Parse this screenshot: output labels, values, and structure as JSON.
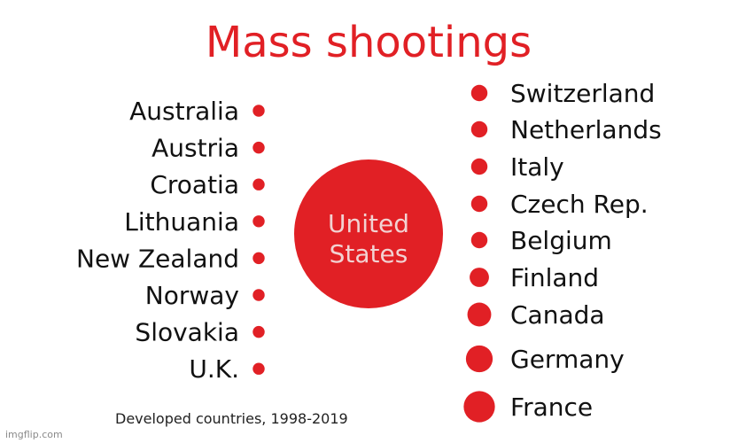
{
  "chart_data": {
    "type": "bubble",
    "title": "Mass shootings",
    "subtitle": "Developed countries, 1998-2019",
    "accent_color": "#e12025",
    "center": {
      "label_line1": "United",
      "label_line2": "States",
      "relative_size": 1.0
    },
    "left_group": [
      {
        "name": "Australia",
        "relative_size": 0.08
      },
      {
        "name": "Austria",
        "relative_size": 0.08
      },
      {
        "name": "Croatia",
        "relative_size": 0.08
      },
      {
        "name": "Lithuania",
        "relative_size": 0.08
      },
      {
        "name": "New Zealand",
        "relative_size": 0.08
      },
      {
        "name": "Norway",
        "relative_size": 0.08
      },
      {
        "name": "Slovakia",
        "relative_size": 0.08
      },
      {
        "name": "U.K.",
        "relative_size": 0.08
      }
    ],
    "right_group": [
      {
        "name": "Switzerland",
        "relative_size": 0.11
      },
      {
        "name": "Netherlands",
        "relative_size": 0.11
      },
      {
        "name": "Italy",
        "relative_size": 0.11
      },
      {
        "name": "Czech Rep.",
        "relative_size": 0.11
      },
      {
        "name": "Belgium",
        "relative_size": 0.11
      },
      {
        "name": "Finland",
        "relative_size": 0.13
      },
      {
        "name": "Canada",
        "relative_size": 0.16
      },
      {
        "name": "Germany",
        "relative_size": 0.18
      },
      {
        "name": "France",
        "relative_size": 0.21
      }
    ]
  },
  "watermark": "imgflip.com"
}
